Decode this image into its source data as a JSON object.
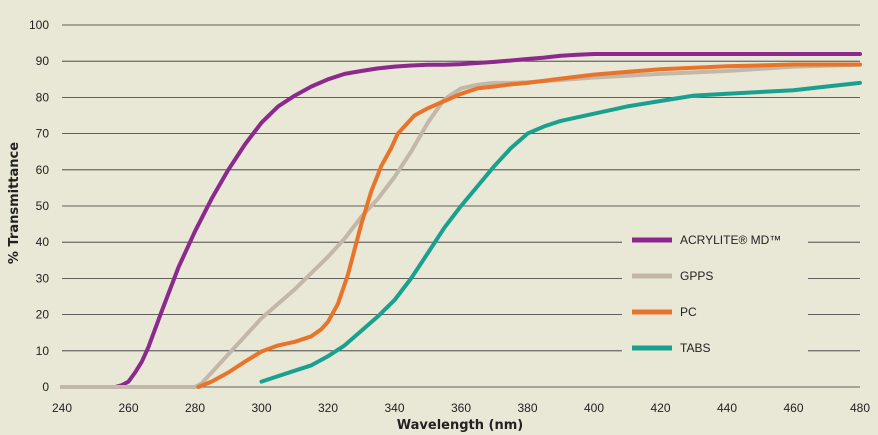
{
  "chart_data": {
    "type": "line",
    "xlabel": "Wavelength (nm)",
    "ylabel": "% Transmittance",
    "xlim": [
      240,
      480
    ],
    "ylim": [
      0,
      100
    ],
    "xticks": [
      240,
      260,
      280,
      300,
      320,
      340,
      360,
      380,
      400,
      420,
      440,
      460,
      480
    ],
    "yticks": [
      0,
      10,
      20,
      30,
      40,
      50,
      60,
      70,
      80,
      90,
      100
    ],
    "grid": "horizontal",
    "legend_position": "right",
    "series": [
      {
        "name": "ACRYLITE® MD™",
        "color": "#8b2a8c",
        "x": [
          240,
          256,
          258,
          260,
          262,
          264,
          266,
          270,
          275,
          280,
          285,
          290,
          295,
          300,
          305,
          310,
          315,
          320,
          325,
          330,
          335,
          340,
          345,
          350,
          355,
          360,
          365,
          370,
          375,
          380,
          385,
          390,
          395,
          400,
          420,
          440,
          460,
          480
        ],
        "y": [
          0,
          0,
          0.5,
          1.5,
          4,
          7,
          11,
          21,
          33,
          43,
          52,
          60,
          67,
          73,
          77.5,
          80.5,
          83,
          85,
          86.5,
          87.3,
          88,
          88.5,
          88.8,
          89,
          89,
          89.2,
          89.5,
          89.8,
          90.2,
          90.6,
          91,
          91.5,
          91.8,
          92,
          92,
          92,
          92,
          92
        ]
      },
      {
        "name": "GPPS",
        "color": "#c2b8a8",
        "x": [
          240,
          262,
          264,
          280,
          282,
          285,
          290,
          295,
          300,
          305,
          310,
          315,
          320,
          325,
          330,
          335,
          340,
          345,
          350,
          355,
          360,
          365,
          370,
          375,
          380,
          390,
          400,
          420,
          440,
          460,
          480
        ],
        "y": [
          0,
          0,
          0,
          0,
          1,
          4,
          9,
          14,
          19,
          23,
          27,
          31.5,
          36,
          41,
          47,
          52,
          58,
          65,
          73,
          79.5,
          82.5,
          83.5,
          84,
          84,
          84.2,
          84.8,
          85.5,
          86.5,
          87.3,
          88.5,
          89
        ]
      },
      {
        "name": "PC",
        "color": "#e8742a",
        "x": [
          281,
          285,
          290,
          295,
          300,
          305,
          310,
          315,
          318,
          320,
          323,
          326,
          328,
          330,
          333,
          336,
          339,
          341,
          343,
          346,
          350,
          355,
          360,
          365,
          370,
          375,
          380,
          390,
          400,
          420,
          440,
          460,
          480
        ],
        "y": [
          0,
          1.5,
          4,
          7,
          9.8,
          11.5,
          12.5,
          14,
          16,
          18,
          23,
          31,
          38,
          45,
          54,
          61,
          66,
          70,
          72,
          75,
          77,
          79,
          81,
          82.5,
          83,
          83.6,
          84,
          85.2,
          86.3,
          87.8,
          88.6,
          89.1,
          89.1
        ]
      },
      {
        "name": "TABS",
        "color": "#1aa08f",
        "x": [
          300,
          305,
          310,
          315,
          320,
          325,
          330,
          335,
          340,
          345,
          350,
          355,
          360,
          365,
          370,
          375,
          380,
          385,
          390,
          395,
          400,
          410,
          420,
          430,
          440,
          450,
          460,
          470,
          480
        ],
        "y": [
          1.5,
          3,
          4.5,
          6,
          8.5,
          11.5,
          15.5,
          19.5,
          24,
          30,
          37,
          44,
          50,
          55.5,
          61,
          66,
          70,
          72,
          73.5,
          74.5,
          75.5,
          77.5,
          79,
          80.5,
          81,
          81.5,
          82,
          83,
          84
        ]
      }
    ]
  }
}
